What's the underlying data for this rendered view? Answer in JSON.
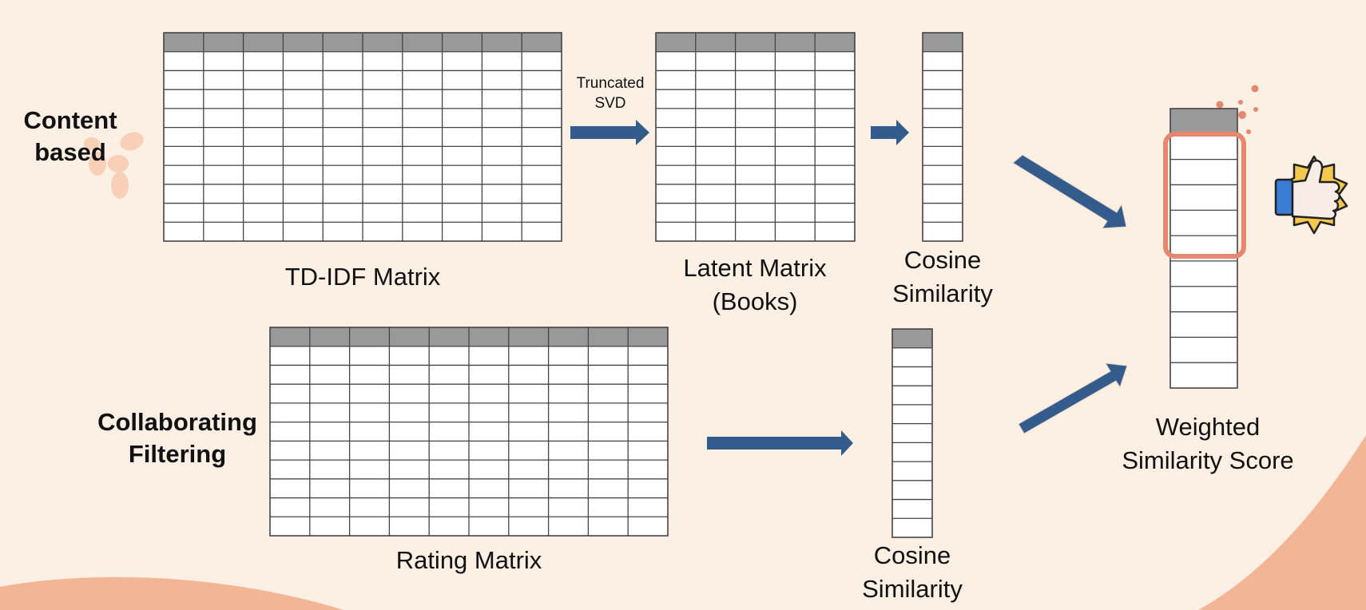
{
  "labels": {
    "content_based": [
      "Content",
      "based"
    ],
    "collaborating_filtering": [
      "Collaborating",
      "Filtering"
    ],
    "truncated_svd": [
      "Truncated",
      "SVD"
    ],
    "tdidf_matrix": "TD-IDF Matrix",
    "latent_matrix": [
      "Latent Matrix",
      "(Books)"
    ],
    "cosine_top": [
      "Cosine",
      "Similarity"
    ],
    "cosine_bottom": [
      "Cosine",
      "Similarity"
    ],
    "rating_matrix": "Rating Matrix",
    "weighted_score": [
      "Weighted",
      "Similarity Score"
    ]
  },
  "icons": {
    "thumbs_up": "thumbs-up-badge-icon",
    "petals": "decorative-petals-icon",
    "dots": "decorative-dots-icon"
  },
  "colors": {
    "background": "#fcefe4",
    "blob": "#f2b596",
    "arrow": "#335b8c",
    "header": "#999999",
    "highlight": "#e8876f",
    "badge": "#f2c94c",
    "cuff": "#3a7bd5"
  }
}
